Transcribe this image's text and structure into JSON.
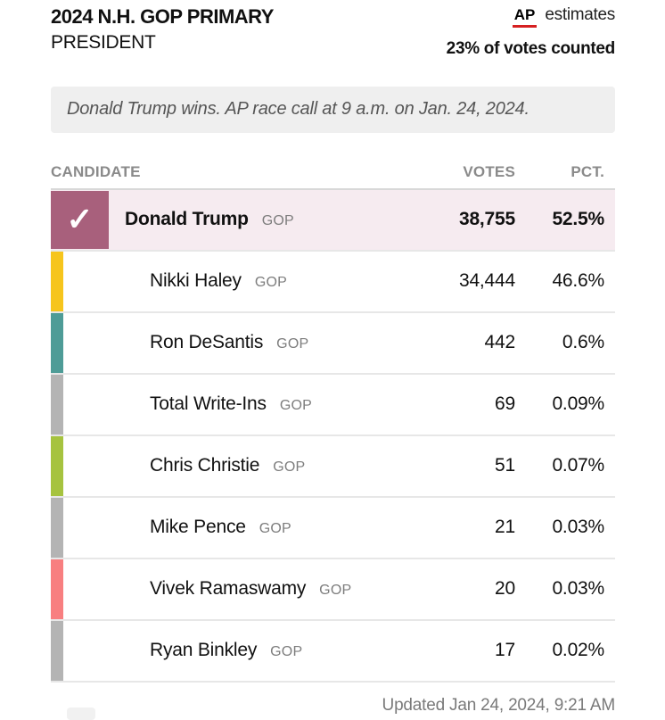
{
  "header": {
    "title": "2024 N.H. GOP PRIMARY",
    "subtitle": "PRESIDENT",
    "source_logo": "AP",
    "source_label": "estimates",
    "counted": "23% of votes counted"
  },
  "callout": {
    "text": "Donald Trump wins. AP race call at 9 a.m. on Jan. 24, 2024."
  },
  "table": {
    "columns": {
      "candidate": "CANDIDATE",
      "votes": "VOTES",
      "pct": "PCT."
    },
    "rows": [
      {
        "name": "Donald Trump",
        "party": "GOP",
        "votes": "38,755",
        "pct": "52.5%",
        "winner": true,
        "color": "#a8607c",
        "row_bg": "#f6ebf0"
      },
      {
        "name": "Nikki Haley",
        "party": "GOP",
        "votes": "34,444",
        "pct": "46.6%",
        "winner": false,
        "color": "#f6c51d"
      },
      {
        "name": "Ron DeSantis",
        "party": "GOP",
        "votes": "442",
        "pct": "0.6%",
        "winner": false,
        "color": "#4e9c97"
      },
      {
        "name": "Total Write-Ins",
        "party": "GOP",
        "votes": "69",
        "pct": "0.09%",
        "winner": false,
        "color": "#b4b4b4"
      },
      {
        "name": "Chris Christie",
        "party": "GOP",
        "votes": "51",
        "pct": "0.07%",
        "winner": false,
        "color": "#a6c33f"
      },
      {
        "name": "Mike Pence",
        "party": "GOP",
        "votes": "21",
        "pct": "0.03%",
        "winner": false,
        "color": "#b4b4b4"
      },
      {
        "name": "Vivek Ramaswamy",
        "party": "GOP",
        "votes": "20",
        "pct": "0.03%",
        "winner": false,
        "color": "#f87f80"
      },
      {
        "name": "Ryan Binkley",
        "party": "GOP",
        "votes": "17",
        "pct": "0.02%",
        "winner": false,
        "color": "#b4b4b4"
      }
    ]
  },
  "footer": {
    "updated": "Updated Jan 24, 2024, 9:21 AM"
  },
  "icons": {
    "winner_check": "✓"
  },
  "colors": {
    "accent_red": "#d62021",
    "winner_swatch": "#a8607c",
    "winner_row_bg": "#f6ebf0",
    "callout_bg": "#efefef",
    "muted_text": "#8a8a8a"
  },
  "chart_data": {
    "type": "table",
    "title": "2024 N.H. GOP PRIMARY — PRESIDENT",
    "subtitle": "AP estimates — 23% of votes counted",
    "columns": [
      "CANDIDATE",
      "VOTES",
      "PCT."
    ],
    "rows": [
      [
        "Donald Trump (GOP)",
        38755,
        "52.5%"
      ],
      [
        "Nikki Haley (GOP)",
        34444,
        "46.6%"
      ],
      [
        "Ron DeSantis (GOP)",
        442,
        "0.6%"
      ],
      [
        "Total Write-Ins (GOP)",
        69,
        "0.09%"
      ],
      [
        "Chris Christie (GOP)",
        51,
        "0.07%"
      ],
      [
        "Mike Pence (GOP)",
        21,
        "0.03%"
      ],
      [
        "Vivek Ramaswamy (GOP)",
        20,
        "0.03%"
      ],
      [
        "Ryan Binkley (GOP)",
        17,
        "0.02%"
      ]
    ],
    "winner": "Donald Trump",
    "annotations": [
      "Donald Trump wins. AP race call at 9 a.m. on Jan. 24, 2024.",
      "Updated Jan 24, 2024, 9:21 AM"
    ]
  }
}
